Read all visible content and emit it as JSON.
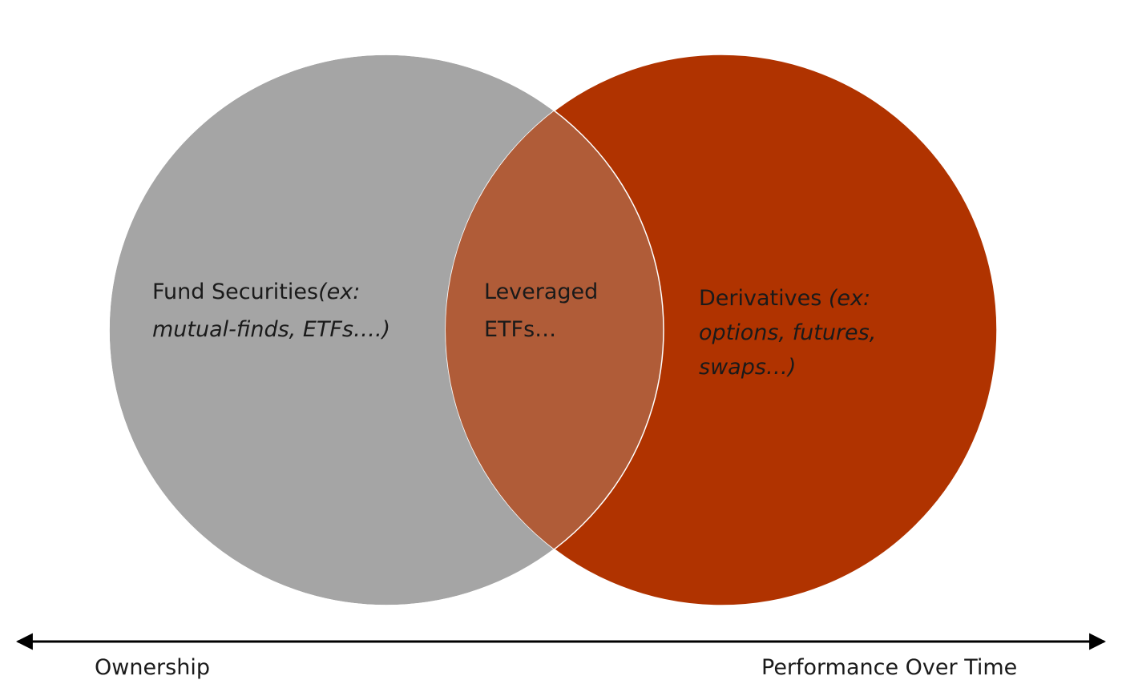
{
  "colors": {
    "left_circle": "#a5a5a5",
    "right_circle": "#b03300",
    "overlap": "#b05c38",
    "axis": "#000000"
  },
  "left_set": {
    "label": "Fund Securities",
    "example_line1": "(ex:",
    "example_line2": "mutual-finds, ETFs….)"
  },
  "overlap_set": {
    "line1": "Leveraged",
    "line2": "ETFs…"
  },
  "right_set": {
    "label": "Derivatives ",
    "example_line1": "(ex:",
    "example_line2": "options, futures,",
    "example_line3": "swaps…)"
  },
  "axis": {
    "left_label": "Ownership",
    "right_label": "Performance Over Time"
  }
}
